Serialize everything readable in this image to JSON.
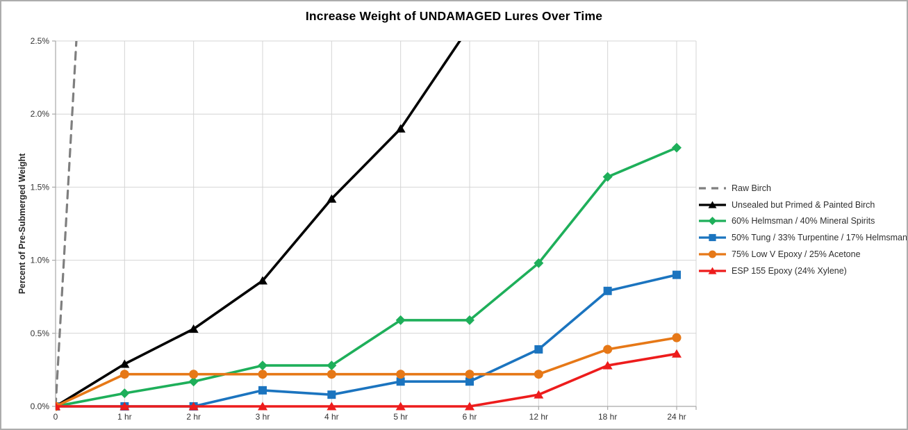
{
  "window": {
    "background": "#ffffff",
    "border_color": "#acacac"
  },
  "chart_data": {
    "type": "line",
    "title": "Increase Weight of UNDAMAGED Lures Over Time",
    "ylabel": "Percent of Pre-Submerged Weight",
    "xlabel": "",
    "categories": [
      "0",
      "1 hr",
      "2 hr",
      "3 hr",
      "4 hr",
      "5 hr",
      "6 hr",
      "12 hr",
      "18 hr",
      "24 hr"
    ],
    "ylim": [
      0,
      2.5
    ],
    "ytick_step": 0.5,
    "ytick_labels": [
      "0.0%",
      "0.5%",
      "1.0%",
      "1.5%",
      "2.0%",
      "2.5%"
    ],
    "grid": true,
    "legend_position": "right",
    "colors": {
      "grid": "#d4d4d4",
      "axis": "#a8a8a8",
      "tick_text": "#333333"
    },
    "series": [
      {
        "name": "Raw Birch",
        "color": "#7f7f7f",
        "dashed": true,
        "marker": "none",
        "values": [
          0,
          8.3,
          null,
          null,
          null,
          null,
          null,
          null,
          null,
          null
        ],
        "note": "rises almost vertically and exits top of chart before 1 hr"
      },
      {
        "name": "Unsealed but Primed & Painted Birch",
        "color": "#000000",
        "dashed": false,
        "marker": "triangle",
        "values": [
          0,
          0.29,
          0.53,
          0.86,
          1.42,
          1.9,
          2.6,
          null,
          null,
          null
        ],
        "note": "exits top of chart just before 6 hr"
      },
      {
        "name": "60% Helmsman / 40% Mineral Spirits",
        "color": "#1eaf5a",
        "dashed": false,
        "marker": "diamond",
        "values": [
          0,
          0.09,
          0.17,
          0.28,
          0.28,
          0.59,
          0.59,
          0.98,
          1.57,
          1.77
        ]
      },
      {
        "name": "50% Tung / 33% Turpentine / 17% Helmsman",
        "color": "#1b74bf",
        "dashed": false,
        "marker": "square",
        "values": [
          0,
          0,
          0,
          0.11,
          0.08,
          0.17,
          0.17,
          0.39,
          0.79,
          0.9
        ]
      },
      {
        "name": "75% Low V Epoxy / 25% Acetone",
        "color": "#e67817",
        "dashed": false,
        "marker": "circle",
        "values": [
          0,
          0.22,
          0.22,
          0.22,
          0.22,
          0.22,
          0.22,
          0.22,
          0.39,
          0.47
        ]
      },
      {
        "name": "ESP 155 Epoxy (24% Xylene)",
        "color": "#ed1c1c",
        "dashed": false,
        "marker": "triangle",
        "values": [
          0,
          0,
          0,
          0,
          0,
          0,
          0,
          0.08,
          0.28,
          0.36
        ]
      }
    ]
  }
}
